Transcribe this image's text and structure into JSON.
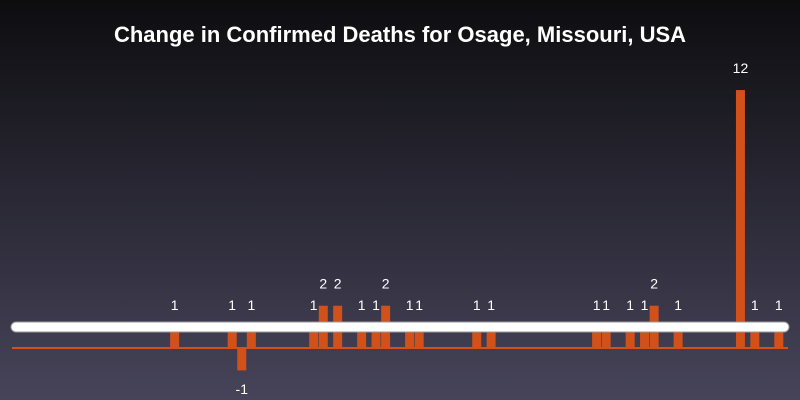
{
  "chart_data": {
    "type": "bar",
    "title": "Change in Confirmed Deaths for Osage, Missouri, USA",
    "color": "#d2501a",
    "ylim": [
      -2,
      13
    ],
    "categories": [
      null,
      null,
      null,
      null,
      null,
      null,
      null,
      null,
      null,
      null,
      null,
      null,
      null,
      null,
      null,
      null,
      null,
      null,
      null,
      null,
      null,
      null,
      null,
      null,
      null,
      null,
      null,
      null,
      null,
      null,
      null,
      null,
      null,
      null,
      null,
      null,
      null,
      null,
      null,
      null,
      null,
      null,
      null,
      null,
      null,
      null,
      null,
      null,
      null,
      null,
      null,
      null,
      null,
      null,
      null,
      null,
      null,
      null,
      null,
      null,
      null,
      null,
      null,
      null,
      null,
      null,
      null,
      null,
      null,
      null,
      null,
      null,
      null,
      null,
      null,
      null,
      null,
      null,
      null,
      null,
      null,
      null,
      null,
      null,
      null,
      null,
      null,
      null,
      null,
      null,
      null,
      null,
      null,
      null,
      null,
      null,
      null,
      null,
      null,
      null,
      null,
      null,
      null,
      null,
      null,
      null,
      null,
      null,
      null,
      null,
      null,
      null,
      null,
      null,
      null,
      null,
      null,
      null,
      null,
      null,
      null,
      null,
      null,
      null,
      null,
      null,
      null,
      null,
      null,
      null,
      null,
      null,
      null,
      null,
      null,
      null,
      null,
      null,
      null,
      null,
      null,
      null,
      null,
      null,
      null,
      null,
      null,
      null,
      null,
      null,
      null,
      null,
      null,
      null,
      null,
      null,
      null,
      null,
      null,
      null,
      null
    ],
    "values": [
      0,
      0,
      0,
      0,
      0,
      0,
      0,
      0,
      0,
      0,
      0,
      0,
      0,
      0,
      0,
      0,
      0,
      0,
      0,
      0,
      0,
      0,
      0,
      0,
      0,
      0,
      0,
      0,
      0,
      0,
      0,
      0,
      0,
      1,
      0,
      0,
      0,
      0,
      0,
      0,
      0,
      0,
      0,
      0,
      0,
      1,
      0,
      -1,
      0,
      1,
      0,
      0,
      0,
      0,
      0,
      0,
      0,
      0,
      0,
      0,
      0,
      0,
      1,
      0,
      2,
      0,
      0,
      2,
      0,
      0,
      0,
      0,
      1,
      0,
      0,
      1,
      0,
      2,
      0,
      0,
      0,
      0,
      1,
      0,
      1,
      0,
      0,
      0,
      0,
      0,
      0,
      0,
      0,
      0,
      0,
      0,
      1,
      0,
      0,
      1,
      0,
      0,
      0,
      0,
      0,
      0,
      0,
      0,
      0,
      0,
      0,
      0,
      0,
      0,
      0,
      0,
      0,
      0,
      0,
      0,
      0,
      1,
      0,
      1,
      0,
      0,
      0,
      0,
      1,
      0,
      0,
      1,
      0,
      2,
      0,
      0,
      0,
      0,
      1,
      0,
      0,
      0,
      0,
      0,
      0,
      0,
      0,
      0,
      0,
      0,
      0,
      12,
      0,
      0,
      1,
      0,
      0,
      0,
      0,
      1,
      0
    ]
  }
}
